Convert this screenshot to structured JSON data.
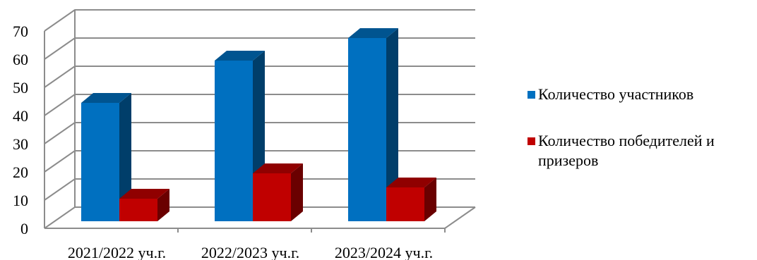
{
  "chart_data": {
    "type": "bar",
    "three_d": true,
    "categories": [
      "2021/2022 уч.г.",
      "2022/2023 уч.г.",
      "2023/2024 уч.г."
    ],
    "series": [
      {
        "name": "Количество участников",
        "values": [
          42,
          57,
          65
        ],
        "color": "#0070C0"
      },
      {
        "name": "Количество победителей и призеров",
        "values": [
          8,
          17,
          12
        ],
        "color": "#C00000"
      }
    ],
    "y_ticks": [
      "0",
      "10",
      "20",
      "30",
      "40",
      "50",
      "60",
      "70"
    ],
    "ylim": [
      0,
      70
    ],
    "grid": true,
    "legend_position": "right"
  }
}
